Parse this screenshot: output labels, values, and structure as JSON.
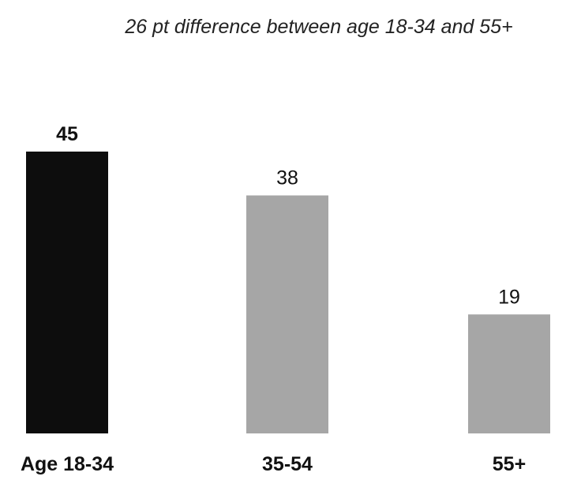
{
  "chart_data": {
    "type": "bar",
    "annotation": "26 pt difference between age 18-34 and 55+",
    "title": "",
    "xlabel": "",
    "ylabel": "",
    "categories": [
      "Age 18-34",
      "35-54",
      "55+"
    ],
    "values": [
      45,
      38,
      19
    ],
    "highlight_index": 0,
    "colors": {
      "highlight": "#0d0d0d",
      "default": "#a6a6a6"
    },
    "ylim": [
      0,
      45
    ],
    "grid": false,
    "legend": "none"
  }
}
